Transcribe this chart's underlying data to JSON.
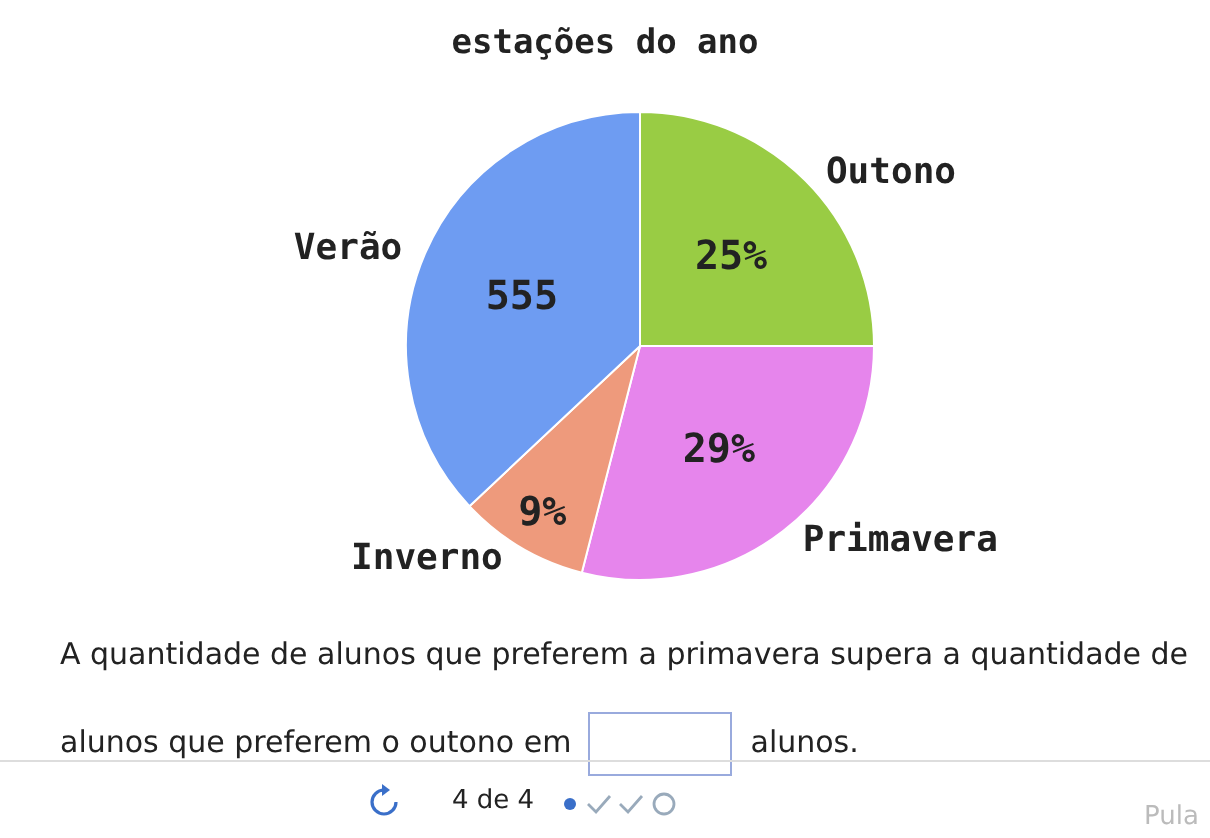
{
  "chart_data": {
    "type": "pie",
    "title": "estações do ano",
    "categories": [
      "Outono",
      "Primavera",
      "Inverno",
      "Verão"
    ],
    "values": [
      25,
      29,
      9,
      37
    ],
    "value_labels": [
      "25%",
      "29%",
      "9%",
      null
    ],
    "colors": [
      "#99cc44",
      "#e685ec",
      "#ee9a7c",
      "#6e9cf2"
    ],
    "annotations": [
      {
        "text": "555",
        "x": "Verão"
      },
      "A quantidade de alunos que preferem a primavera supera a quantidade de alunos que preferem o outono em",
      "alunos.",
      "4 de 4",
      "Pula"
    ]
  }
}
